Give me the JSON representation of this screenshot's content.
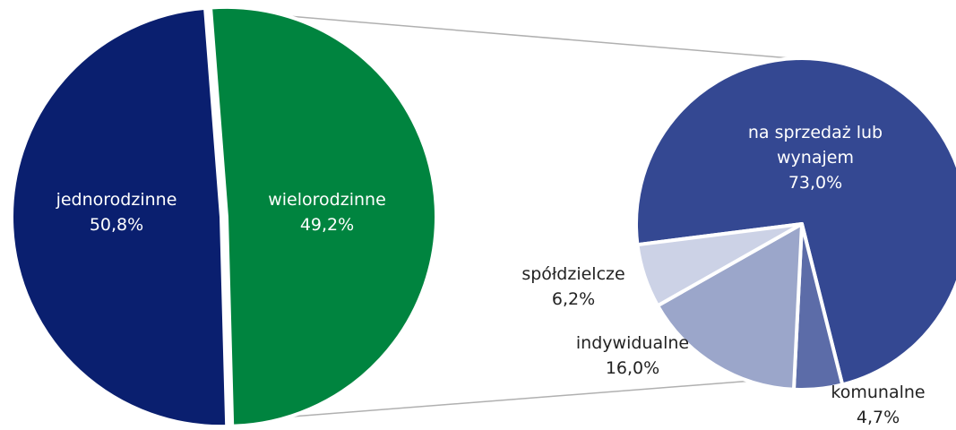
{
  "chart_data": [
    {
      "type": "pie",
      "categories": [
        "jednorodzinne",
        "wielorodzinne"
      ],
      "values": [
        50.8,
        49.2
      ],
      "value_labels": [
        "50,8%",
        "49,2%"
      ],
      "colors": [
        "#00843f",
        "#0a1f6f"
      ]
    },
    {
      "type": "pie",
      "categories": [
        "na sprzedaż lub wynajem",
        "komunalne",
        "indywidualne",
        "spółdzielcze"
      ],
      "values": [
        73.0,
        4.7,
        16.0,
        6.2
      ],
      "value_labels": [
        "73,0%",
        "4,7%",
        "16,0%",
        "6,2%"
      ],
      "colors": [
        "#344892",
        "#5c6ca8",
        "#9ba6ca",
        "#ccd2e6"
      ]
    }
  ]
}
